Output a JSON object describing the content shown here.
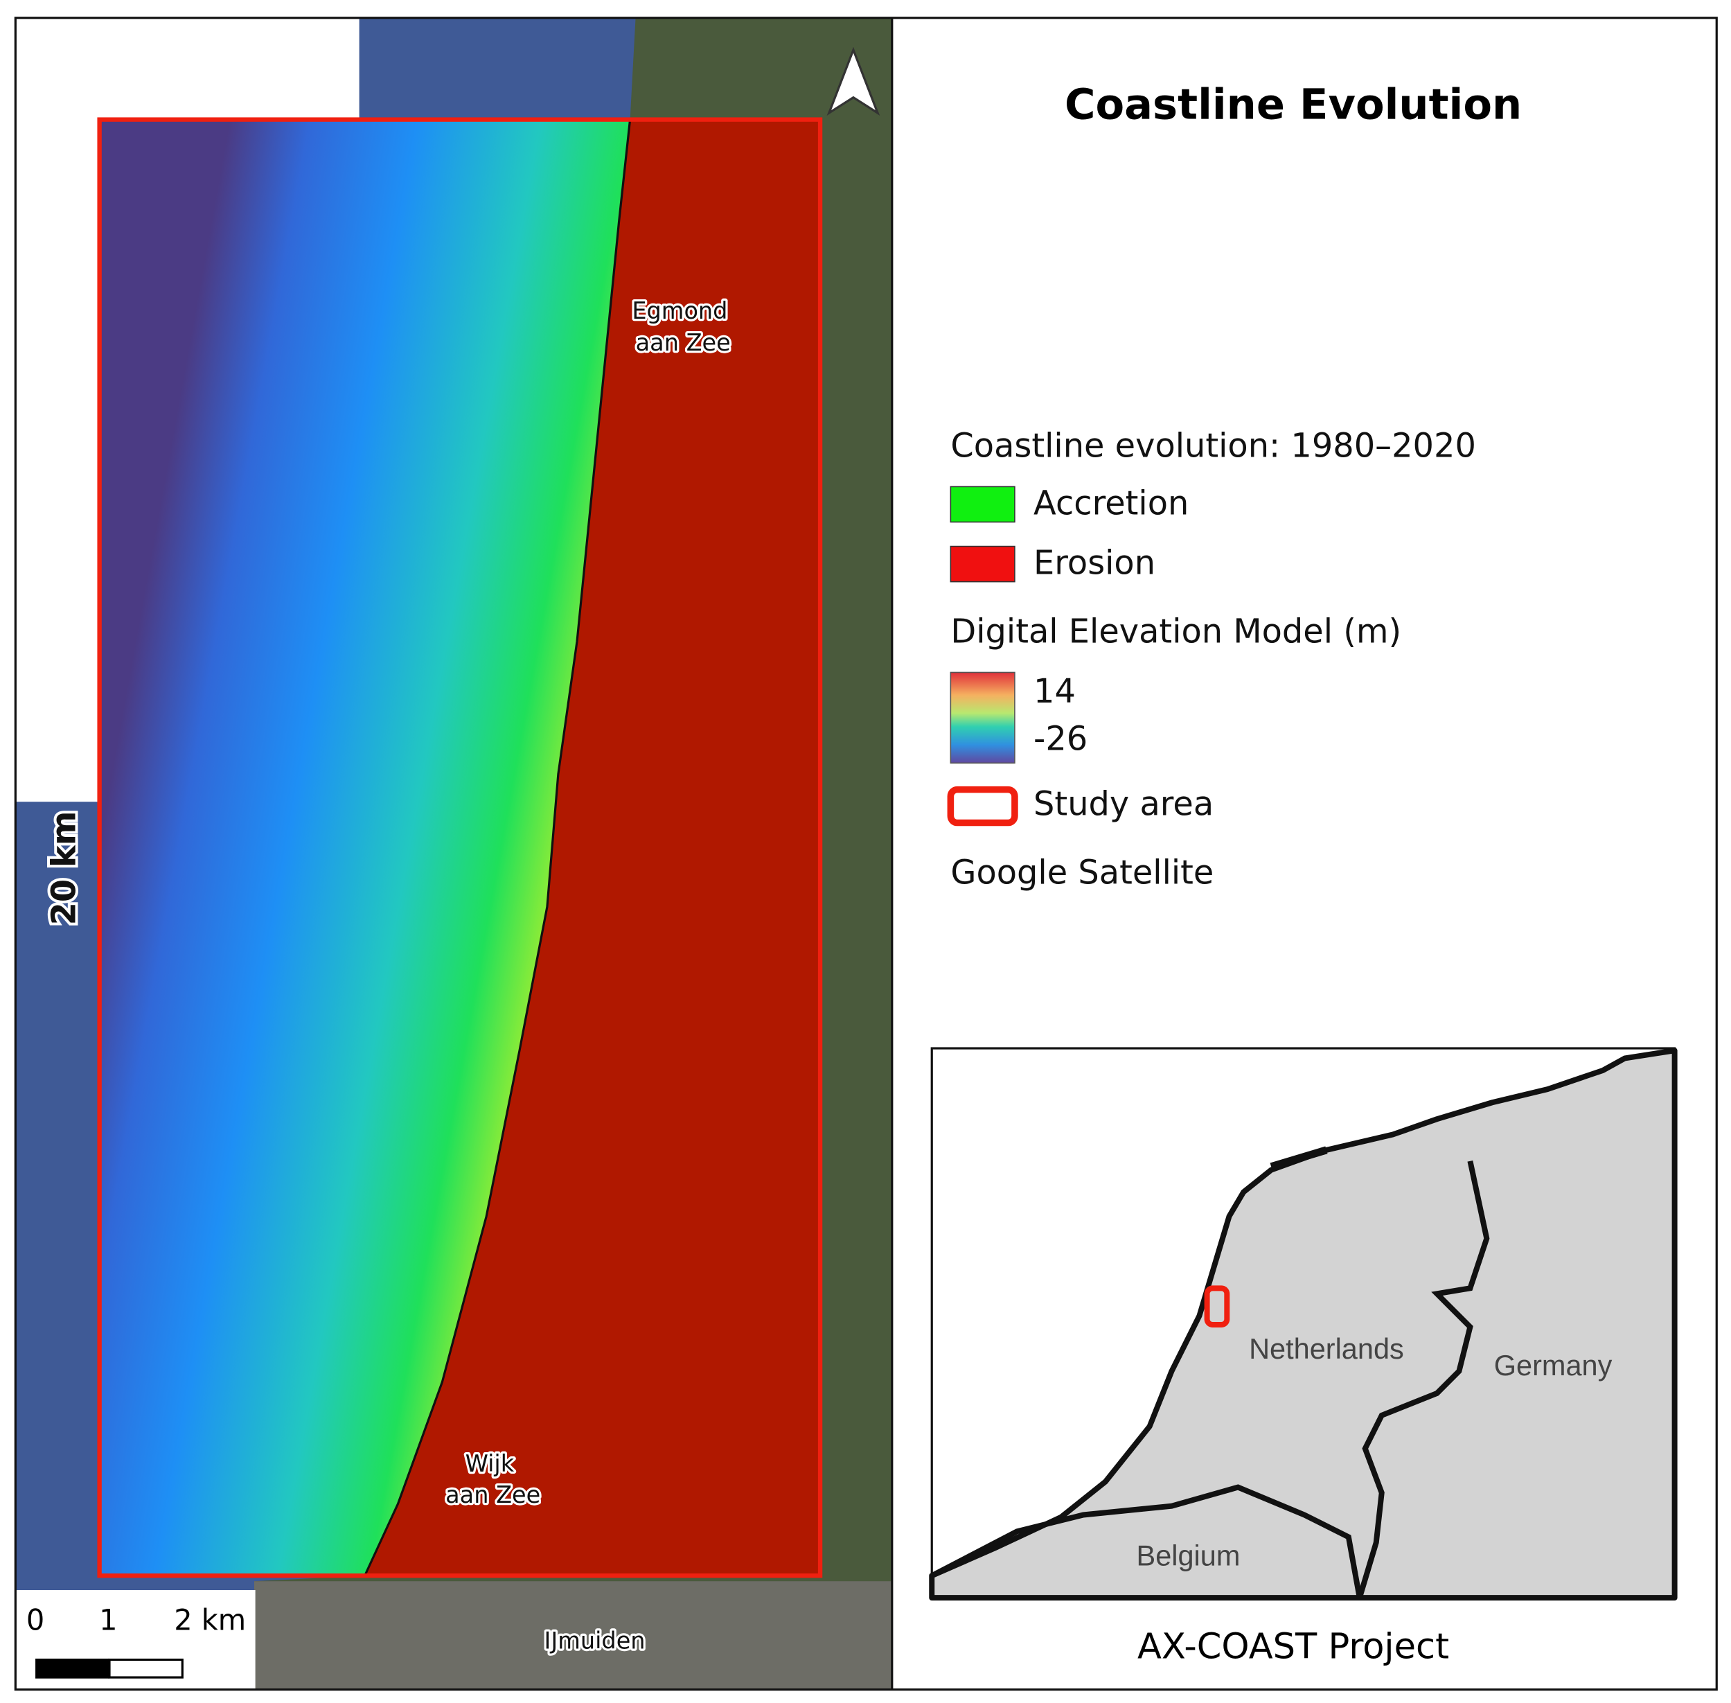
{
  "title": "Coastline Evolution",
  "legend": {
    "title": "Coastline evolution: 1980–2020",
    "items": [
      "Accretion",
      "Erosion"
    ],
    "dem_title": "Digital Elevation Model (m)",
    "dem_max": 14,
    "dem_min": -26,
    "study_area": "Study area",
    "basemap": "Google Satellite"
  },
  "map": {
    "places": [
      {
        "lines": [
          "Egmond",
          "aan Zee"
        ]
      },
      {
        "lines": [
          "Wijk",
          "aan Zee"
        ]
      },
      {
        "lines": [
          "IJmuiden"
        ]
      }
    ],
    "scale_bar": [
      0,
      1,
      "2 km"
    ],
    "vertical_scale": "20 km"
  },
  "inset": {
    "labels": [
      "Netherlands",
      "Germany",
      "Belgium"
    ]
  },
  "footer": "AX-COAST Project"
}
